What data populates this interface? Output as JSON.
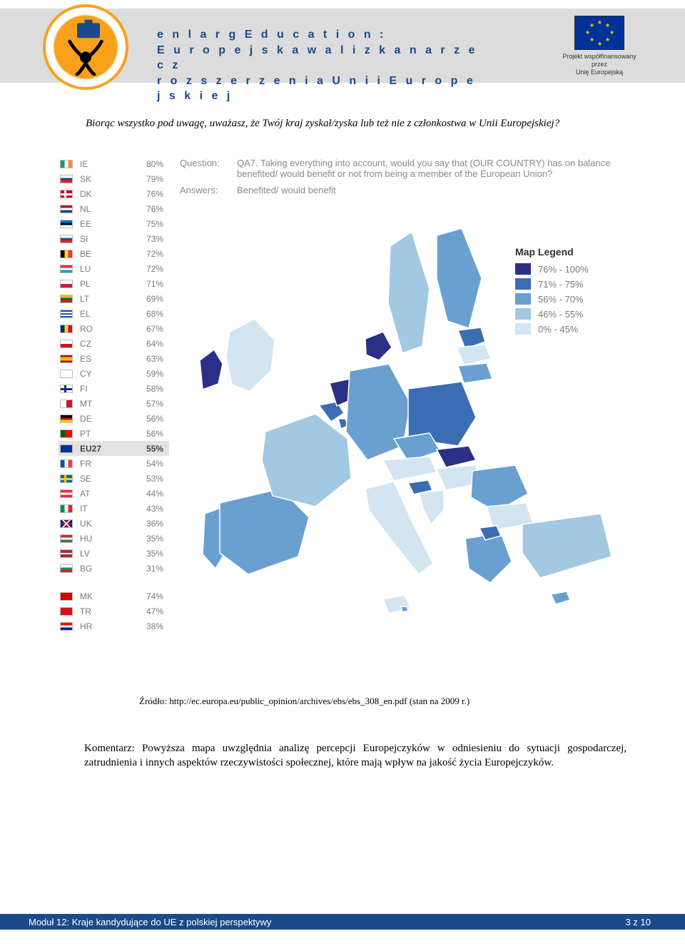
{
  "header": {
    "title_line1": "e n l a r g E d u c a t i o n :",
    "title_line2": "E u r o p e j s k a   w a l i z k a   n a   r z e c z",
    "title_line3": "r o z s z e r z e n i a   U n i i   E u r o p e j s k i e j",
    "eu_caption_line1": "Projekt współfinansowany przez",
    "eu_caption_line2": "Unię Europejską"
  },
  "intro_question": "Biorąc wszystko pod uwagę, uważasz, że Twój kraj zyskał/zyska lub też nie z członkostwa w Unii Europejskiej?",
  "qa": {
    "q_label": "Question:",
    "q_text": "QA7. Taking everything into account, would you say that (OUR COUNTRY) has on balance benefited/ would benefit or not from being a member of the European Union?",
    "a_label": "Answers:",
    "a_text": "Benefited/ would benefit"
  },
  "country_table": [
    {
      "cc": "IE",
      "pct": "80%",
      "flag": [
        "#169b62",
        "#ffffff",
        "#ff883e"
      ],
      "layout": "v3"
    },
    {
      "cc": "SK",
      "pct": "79%",
      "flag": [
        "#ffffff",
        "#0b4ea2",
        "#ee1c25"
      ],
      "layout": "h3"
    },
    {
      "cc": "DK",
      "pct": "76%",
      "flag": [
        "#c60c30"
      ],
      "layout": "dk"
    },
    {
      "cc": "NL",
      "pct": "76%",
      "flag": [
        "#ae1c28",
        "#ffffff",
        "#21468b"
      ],
      "layout": "h3"
    },
    {
      "cc": "EE",
      "pct": "75%",
      "flag": [
        "#0072ce",
        "#000000",
        "#ffffff"
      ],
      "layout": "h3"
    },
    {
      "cc": "SI",
      "pct": "73%",
      "flag": [
        "#ffffff",
        "#005da4",
        "#ed1c24"
      ],
      "layout": "h3"
    },
    {
      "cc": "BE",
      "pct": "72%",
      "flag": [
        "#000000",
        "#fdda24",
        "#ef3340"
      ],
      "layout": "v3"
    },
    {
      "cc": "LU",
      "pct": "72%",
      "flag": [
        "#ed2939",
        "#ffffff",
        "#00a1de"
      ],
      "layout": "h3"
    },
    {
      "cc": "PL",
      "pct": "71%",
      "flag": [
        "#ffffff",
        "#dc143c"
      ],
      "layout": "h2"
    },
    {
      "cc": "LT",
      "pct": "69%",
      "flag": [
        "#fdb913",
        "#006a44",
        "#c1272d"
      ],
      "layout": "h3"
    },
    {
      "cc": "EL",
      "pct": "68%",
      "flag": [
        "#0d5eaf",
        "#ffffff"
      ],
      "layout": "el"
    },
    {
      "cc": "RO",
      "pct": "67%",
      "flag": [
        "#002b7f",
        "#fcd116",
        "#ce1126"
      ],
      "layout": "v3"
    },
    {
      "cc": "CZ",
      "pct": "64%",
      "flag": [
        "#ffffff",
        "#d7141a",
        "#11457e"
      ],
      "layout": "cz"
    },
    {
      "cc": "ES",
      "pct": "63%",
      "flag": [
        "#aa151b",
        "#f1bf00",
        "#aa151b"
      ],
      "layout": "es"
    },
    {
      "cc": "CY",
      "pct": "59%",
      "flag": [
        "#ffffff"
      ],
      "layout": "solid"
    },
    {
      "cc": "FI",
      "pct": "58%",
      "flag": [
        "#ffffff",
        "#003580"
      ],
      "layout": "fi"
    },
    {
      "cc": "MT",
      "pct": "57%",
      "flag": [
        "#ffffff",
        "#cf142b"
      ],
      "layout": "v2"
    },
    {
      "cc": "DE",
      "pct": "56%",
      "flag": [
        "#000000",
        "#dd0000",
        "#ffce00"
      ],
      "layout": "h3"
    },
    {
      "cc": "PT",
      "pct": "56%",
      "flag": [
        "#006600",
        "#ff0000"
      ],
      "layout": "pt"
    },
    {
      "cc": "EU27",
      "pct": "55%",
      "flag": [
        "#003399"
      ],
      "layout": "eu",
      "hl": true
    },
    {
      "cc": "FR",
      "pct": "54%",
      "flag": [
        "#0055a4",
        "#ffffff",
        "#ef4135"
      ],
      "layout": "v3"
    },
    {
      "cc": "SE",
      "pct": "53%",
      "flag": [
        "#006aa7",
        "#fecc00"
      ],
      "layout": "se"
    },
    {
      "cc": "AT",
      "pct": "44%",
      "flag": [
        "#ed2939",
        "#ffffff",
        "#ed2939"
      ],
      "layout": "h3"
    },
    {
      "cc": "IT",
      "pct": "43%",
      "flag": [
        "#009246",
        "#ffffff",
        "#ce2b37"
      ],
      "layout": "v3"
    },
    {
      "cc": "UK",
      "pct": "36%",
      "flag": [
        "#012169"
      ],
      "layout": "uk"
    },
    {
      "cc": "HU",
      "pct": "35%",
      "flag": [
        "#cd2a3e",
        "#ffffff",
        "#436f4d"
      ],
      "layout": "h3"
    },
    {
      "cc": "LV",
      "pct": "35%",
      "flag": [
        "#9e3039",
        "#ffffff",
        "#9e3039"
      ],
      "layout": "lv"
    },
    {
      "cc": "BG",
      "pct": "31%",
      "flag": [
        "#ffffff",
        "#00966e",
        "#d62612"
      ],
      "layout": "h3"
    }
  ],
  "candidate_table": [
    {
      "cc": "MK",
      "pct": "74%",
      "flag": [
        "#d20000",
        "#ffe600"
      ],
      "layout": "mk"
    },
    {
      "cc": "TR",
      "pct": "47%",
      "flag": [
        "#e30a17"
      ],
      "layout": "tr"
    },
    {
      "cc": "HR",
      "pct": "38%",
      "flag": [
        "#ff0000",
        "#ffffff",
        "#171796"
      ],
      "layout": "h3"
    }
  ],
  "map_legend": {
    "title": "Map Legend",
    "items": [
      {
        "label": "76% - 100%",
        "color": "#2b2f85"
      },
      {
        "label": "71% - 75%",
        "color": "#3a6db2"
      },
      {
        "label": "56% - 70%",
        "color": "#6aa0cf"
      },
      {
        "label": "46% - 55%",
        "color": "#a2c8e2"
      },
      {
        "label": "0% - 45%",
        "color": "#d2e5f1"
      }
    ]
  },
  "map_countries": {
    "IE": "#2b2f85",
    "UK": "#d2e5f1",
    "PT": "#6aa0cf",
    "ES": "#6aa0cf",
    "FR": "#a2c8e2",
    "BE": "#3a6db2",
    "NL": "#2b2f85",
    "LU": "#3a6db2",
    "DE": "#6aa0cf",
    "DK": "#2b2f85",
    "SE": "#a2c8e2",
    "FI": "#6aa0cf",
    "EE": "#3a6db2",
    "LV": "#d2e5f1",
    "LT": "#6aa0cf",
    "PL": "#3a6db2",
    "CZ": "#6aa0cf",
    "SK": "#2b2f85",
    "AT": "#d2e5f1",
    "HU": "#d2e5f1",
    "SI": "#3a6db2",
    "IT": "#d2e5f1",
    "RO": "#6aa0cf",
    "BG": "#d2e5f1",
    "EL": "#6aa0cf",
    "CY": "#6aa0cf",
    "MT": "#6aa0cf",
    "TR": "#a2c8e2",
    "HR": "#d2e5f1",
    "MK": "#3a6db2"
  },
  "source_line": "Źródło: http://ec.europa.eu/public_opinion/archives/ebs/ebs_308_en.pdf (stan na 2009 r.)",
  "comment": "Komentarz: Powyższa mapa uwzględnia analizę percepcji Europejczyków w odniesieniu do sytuacji gospodarczej, zatrudnienia i innych aspektów rzeczywistości społecznej, które mają wpływ na jakość życia Europejczyków.",
  "footer": {
    "left": "Moduł 12: Kraje kandydujące do UE z polskiej perspektywy",
    "right": "3 z 10"
  }
}
